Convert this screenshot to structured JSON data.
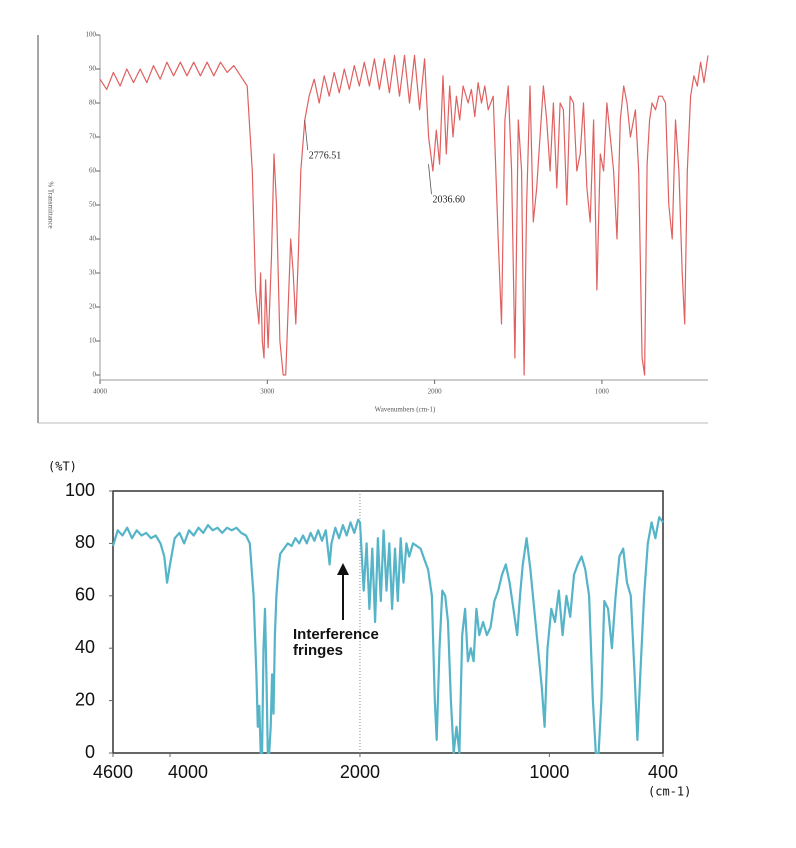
{
  "chart_data": [
    {
      "type": "line",
      "color": "#e06060",
      "ylabel": "% Transmittance",
      "xlabel": "Wavenumbers (cm-1)",
      "xlim": [
        4000,
        366
      ],
      "ylim": [
        0,
        100
      ],
      "xticks": [
        4000,
        3000,
        2000,
        1000
      ],
      "yticks": [
        0,
        10,
        20,
        30,
        40,
        50,
        60,
        70,
        80,
        90,
        100
      ],
      "annotations": [
        {
          "x": 2776.51,
          "y": 75,
          "label": "2776.51"
        },
        {
          "x": 2036.6,
          "y": 62,
          "label": "2036.60"
        }
      ],
      "x": [
        4000,
        3960,
        3920,
        3880,
        3840,
        3800,
        3760,
        3720,
        3680,
        3640,
        3600,
        3560,
        3520,
        3480,
        3440,
        3400,
        3360,
        3320,
        3280,
        3240,
        3200,
        3160,
        3120,
        3090,
        3070,
        3050,
        3040,
        3030,
        3020,
        3010,
        2995,
        2975,
        2960,
        2945,
        2925,
        2905,
        2890,
        2875,
        2860,
        2845,
        2830,
        2815,
        2800,
        2776,
        2750,
        2720,
        2690,
        2660,
        2630,
        2600,
        2570,
        2540,
        2510,
        2480,
        2450,
        2420,
        2390,
        2360,
        2330,
        2300,
        2270,
        2240,
        2210,
        2180,
        2150,
        2120,
        2090,
        2060,
        2036,
        2010,
        1990,
        1970,
        1950,
        1930,
        1910,
        1890,
        1870,
        1850,
        1830,
        1800,
        1780,
        1760,
        1740,
        1720,
        1700,
        1680,
        1650,
        1620,
        1600,
        1580,
        1560,
        1540,
        1520,
        1500,
        1480,
        1465,
        1450,
        1430,
        1410,
        1390,
        1370,
        1350,
        1330,
        1310,
        1290,
        1270,
        1250,
        1230,
        1210,
        1190,
        1170,
        1150,
        1130,
        1110,
        1090,
        1070,
        1050,
        1030,
        1010,
        990,
        970,
        950,
        930,
        910,
        890,
        870,
        850,
        830,
        800,
        780,
        760,
        745,
        730,
        715,
        700,
        680,
        660,
        640,
        620,
        600,
        580,
        560,
        540,
        520,
        505,
        490,
        470,
        450,
        430,
        410,
        390,
        366
      ],
      "values": [
        87,
        84,
        89,
        85,
        90,
        86,
        90,
        86,
        91,
        87,
        92,
        88,
        92,
        88,
        92,
        88,
        92,
        88,
        92,
        89,
        91,
        88,
        85,
        60,
        25,
        15,
        30,
        10,
        5,
        28,
        8,
        35,
        65,
        50,
        10,
        0,
        0,
        20,
        40,
        30,
        15,
        35,
        60,
        75,
        82,
        87,
        80,
        88,
        82,
        89,
        83,
        90,
        84,
        91,
        85,
        92,
        85,
        93,
        84,
        93,
        83,
        94,
        82,
        94,
        80,
        94,
        78,
        93,
        70,
        60,
        72,
        62,
        88,
        65,
        85,
        70,
        82,
        75,
        85,
        80,
        84,
        76,
        86,
        80,
        85,
        78,
        82,
        40,
        15,
        75,
        85,
        60,
        5,
        75,
        60,
        0,
        50,
        85,
        45,
        55,
        70,
        85,
        75,
        60,
        80,
        55,
        80,
        78,
        50,
        82,
        80,
        60,
        65,
        80,
        55,
        45,
        75,
        25,
        65,
        60,
        80,
        70,
        60,
        40,
        75,
        85,
        80,
        70,
        78,
        60,
        5,
        0,
        62,
        75,
        80,
        78,
        82,
        82,
        80,
        50,
        40,
        75,
        60,
        30,
        15,
        60,
        82,
        88,
        85,
        92,
        86,
        94
      ]
    },
    {
      "type": "line",
      "color": "#55b4c8",
      "ylabel": "(%T)",
      "xlabel": "(cm-1)",
      "xlim": [
        4600,
        400
      ],
      "ylim": [
        0,
        100
      ],
      "xbreak": 2000,
      "xticks": [
        4600,
        4000,
        2000,
        1000,
        400
      ],
      "yticks": [
        0,
        20,
        40,
        60,
        80,
        100
      ],
      "annotations": [
        {
          "lines": [
            "Interference",
            "fringes"
          ]
        }
      ],
      "x": [
        4600,
        4550,
        4500,
        4450,
        4400,
        4350,
        4300,
        4250,
        4200,
        4150,
        4100,
        4060,
        4030,
        4000,
        3950,
        3900,
        3850,
        3800,
        3750,
        3700,
        3650,
        3600,
        3550,
        3500,
        3450,
        3400,
        3350,
        3300,
        3250,
        3200,
        3160,
        3120,
        3090,
        3075,
        3060,
        3045,
        3030,
        3015,
        3000,
        2985,
        2970,
        2955,
        2940,
        2925,
        2910,
        2895,
        2880,
        2860,
        2840,
        2800,
        2760,
        2720,
        2680,
        2640,
        2600,
        2560,
        2520,
        2480,
        2440,
        2400,
        2360,
        2320,
        2300,
        2260,
        2220,
        2180,
        2140,
        2100,
        2060,
        2020,
        2000,
        1980,
        1965,
        1950,
        1935,
        1920,
        1905,
        1890,
        1875,
        1860,
        1845,
        1830,
        1815,
        1800,
        1785,
        1770,
        1755,
        1740,
        1720,
        1700,
        1680,
        1660,
        1640,
        1620,
        1605,
        1595,
        1580,
        1565,
        1550,
        1535,
        1520,
        1505,
        1490,
        1475,
        1460,
        1445,
        1430,
        1415,
        1400,
        1385,
        1370,
        1350,
        1330,
        1310,
        1290,
        1270,
        1250,
        1230,
        1210,
        1190,
        1170,
        1155,
        1140,
        1120,
        1100,
        1080,
        1060,
        1040,
        1025,
        1010,
        990,
        970,
        950,
        930,
        910,
        890,
        870,
        850,
        830,
        810,
        790,
        770,
        755,
        740,
        725,
        710,
        690,
        670,
        650,
        630,
        610,
        590,
        570,
        550,
        535,
        520,
        500,
        480,
        460,
        440,
        420,
        400
      ],
      "values": [
        79,
        85,
        83,
        86,
        82,
        85,
        83,
        84,
        82,
        83,
        80,
        75,
        65,
        72,
        82,
        84,
        80,
        85,
        83,
        86,
        84,
        87,
        85,
        86,
        84,
        86,
        85,
        86,
        84,
        83,
        80,
        60,
        30,
        10,
        18,
        0,
        0,
        40,
        55,
        30,
        0,
        0,
        10,
        30,
        15,
        45,
        60,
        70,
        76,
        78,
        80,
        79,
        82,
        80,
        83,
        80,
        84,
        81,
        85,
        81,
        85,
        72,
        80,
        86,
        82,
        87,
        83,
        88,
        84,
        89,
        88,
        62,
        80,
        55,
        78,
        50,
        82,
        58,
        85,
        62,
        80,
        55,
        78,
        58,
        82,
        65,
        80,
        75,
        80,
        79,
        78,
        74,
        70,
        60,
        20,
        5,
        40,
        62,
        60,
        50,
        20,
        0,
        10,
        0,
        45,
        55,
        35,
        40,
        35,
        55,
        45,
        50,
        45,
        48,
        58,
        62,
        68,
        72,
        65,
        55,
        45,
        60,
        72,
        82,
        70,
        55,
        40,
        25,
        10,
        40,
        55,
        50,
        62,
        45,
        60,
        52,
        68,
        72,
        75,
        70,
        60,
        20,
        0,
        0,
        20,
        58,
        55,
        40,
        60,
        75,
        78,
        65,
        60,
        30,
        5,
        30,
        60,
        80,
        88,
        82,
        90,
        88
      ]
    }
  ]
}
